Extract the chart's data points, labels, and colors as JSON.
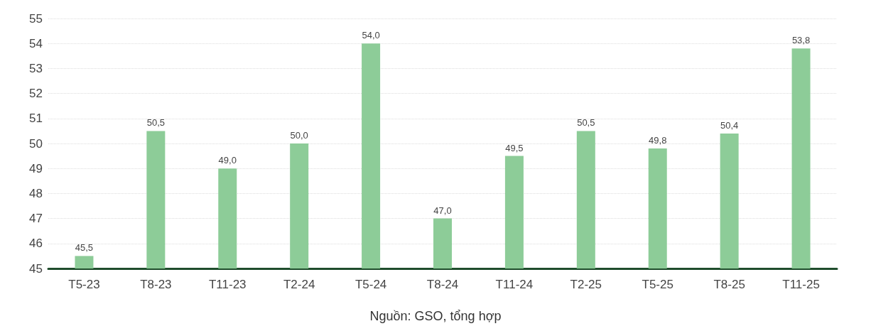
{
  "chart_data": {
    "type": "bar",
    "categories": [
      "T5-23",
      "T8-23",
      "T11-23",
      "T2-24",
      "T5-24",
      "T8-24",
      "T11-24",
      "T2-25",
      "T5-25",
      "T8-25",
      "T11-25"
    ],
    "series": [
      {
        "color": "#8dcc98",
        "values": [
          45.5,
          50.5,
          49.0,
          50.0,
          54.0,
          47.0,
          49.5,
          50.5,
          49.8,
          50.4,
          53.8
        ],
        "value_labels": [
          "45,5",
          "50,5",
          "49,0",
          "50,0",
          "54,0",
          "47,0",
          "49,5",
          "50,5",
          "49,8",
          "50,4",
          "53,8"
        ]
      }
    ],
    "ylim": [
      45,
      55
    ],
    "yticks": [
      45,
      46,
      47,
      48,
      49,
      50,
      51,
      52,
      53,
      54,
      55
    ],
    "grid": "y",
    "annotations": [
      "Nguồn: GSO, tổng hợp"
    ]
  }
}
